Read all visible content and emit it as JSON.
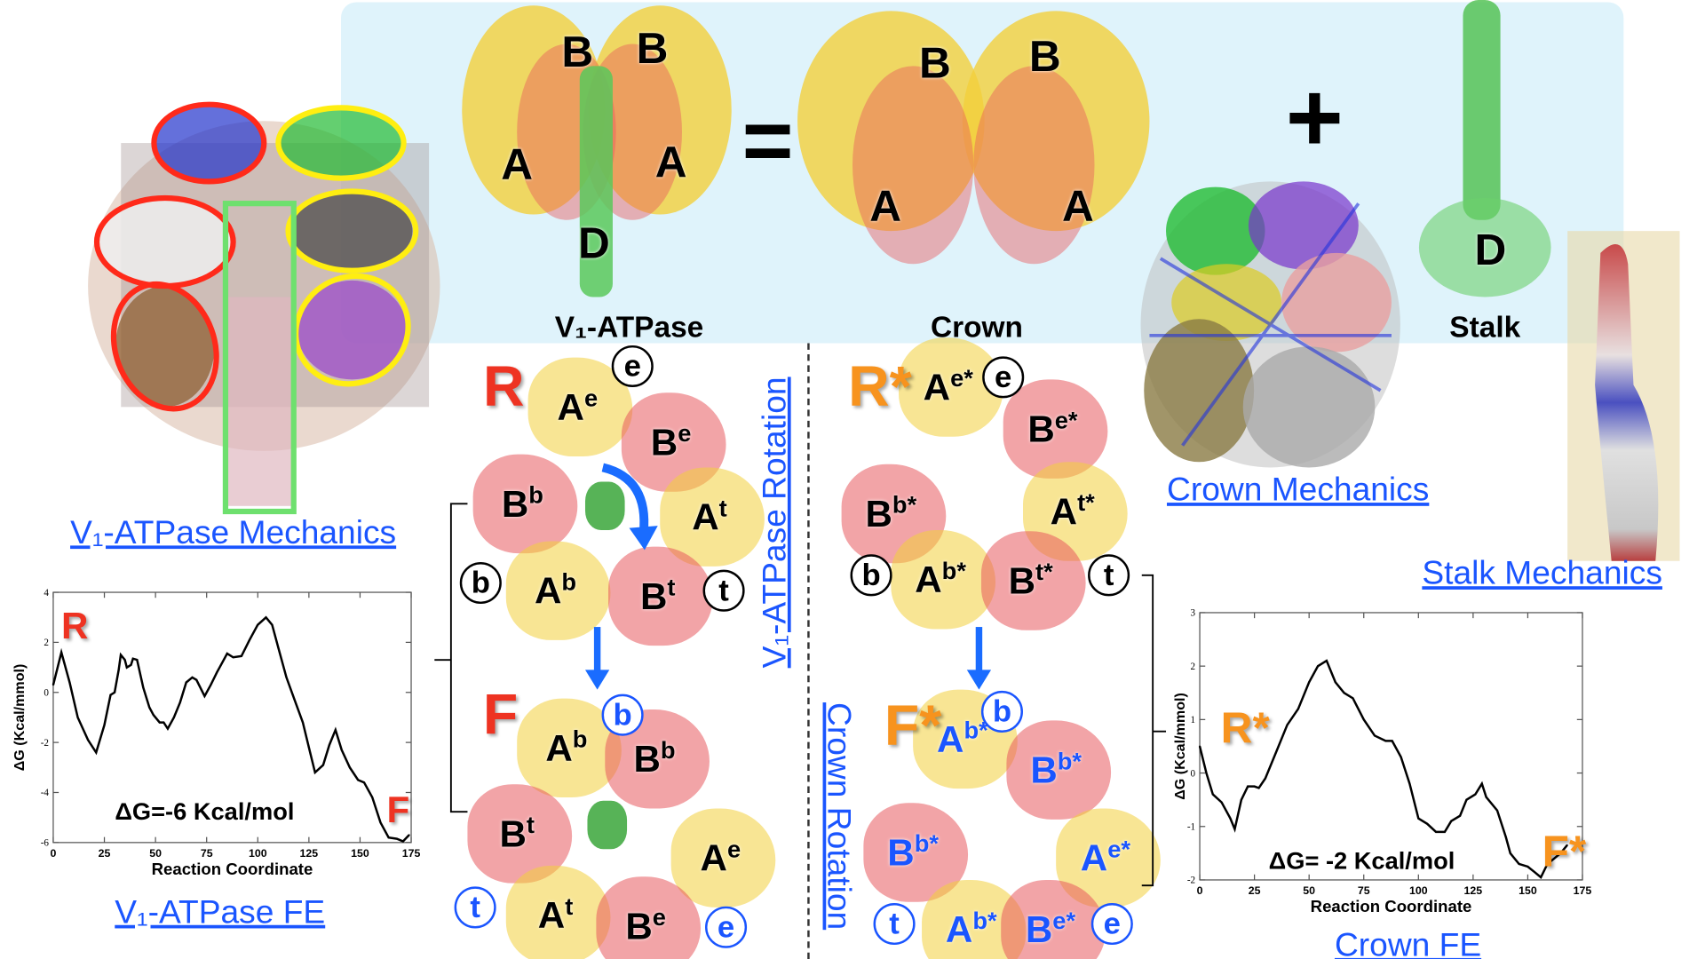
{
  "top": {
    "v1_label": "V₁-ATPase",
    "crown_label": "Crown",
    "stalk_label": "Stalk",
    "equals": "=",
    "plus": "+",
    "v1_subunits": [
      "B",
      "B",
      "A",
      "A",
      "D"
    ],
    "crown_subunits": [
      "B",
      "B",
      "A",
      "A"
    ],
    "stalk_subunit": "D"
  },
  "links": {
    "v1_mechanics": "V₁-ATPase Mechanics",
    "crown_mechanics": "Crown Mechanics",
    "stalk_mechanics": "Stalk Mechanics",
    "v1_fe": "V₁-ATPase FE",
    "crown_fe": "Crown FE",
    "v1_rotation": "V₁-ATPase Rotation",
    "crown_rotation": "Crown Rotation"
  },
  "colors": {
    "red_state": "#ee3322",
    "orange_state": "#f7931e",
    "link_blue": "#1a55ff",
    "arrow_blue": "#1a6cff",
    "panel": "#dff3fb",
    "subunit_A": "#f2cf3c",
    "subunit_B": "#e85a5e"
  },
  "v1_rotation": {
    "before": {
      "state": "R",
      "subunits": [
        {
          "b": "A",
          "s": "e"
        },
        {
          "b": "B",
          "s": "e"
        },
        {
          "b": "B",
          "s": "b"
        },
        {
          "b": "A",
          "s": "t"
        },
        {
          "b": "A",
          "s": "b"
        },
        {
          "b": "B",
          "s": "t"
        }
      ],
      "markers": [
        "e",
        "b",
        "t"
      ]
    },
    "after": {
      "state": "F",
      "subunits": [
        {
          "b": "A",
          "s": "b"
        },
        {
          "b": "B",
          "s": "b"
        },
        {
          "b": "B",
          "s": "t"
        },
        {
          "b": "A",
          "s": "e"
        },
        {
          "b": "A",
          "s": "t"
        },
        {
          "b": "B",
          "s": "e"
        }
      ],
      "markers": [
        "b",
        "t",
        "e"
      ]
    }
  },
  "crown_rotation": {
    "before": {
      "state": "R*",
      "subunits": [
        {
          "b": "A",
          "s": "e*"
        },
        {
          "b": "B",
          "s": "e*"
        },
        {
          "b": "B",
          "s": "b*"
        },
        {
          "b": "A",
          "s": "t*"
        },
        {
          "b": "A",
          "s": "b*"
        },
        {
          "b": "B",
          "s": "t*"
        }
      ],
      "markers": [
        "e",
        "b",
        "t"
      ]
    },
    "after": {
      "state": "F*",
      "subunits": [
        {
          "b": "A",
          "s": "b*"
        },
        {
          "b": "B",
          "s": "b*"
        },
        {
          "b": "B",
          "s": "b*"
        },
        {
          "b": "A",
          "s": "e*"
        },
        {
          "b": "A",
          "s": "b*"
        },
        {
          "b": "B",
          "s": "e*"
        }
      ],
      "markers": [
        "b",
        "t",
        "e"
      ]
    }
  },
  "chart_data": [
    {
      "type": "line",
      "xlabel": "Reaction Coordinate",
      "ylabel": "ΔG (Kcal/mmol)",
      "xlim": [
        0,
        175
      ],
      "ylim": [
        -6,
        4
      ],
      "xticks": [
        0,
        25,
        50,
        75,
        100,
        125,
        150,
        175
      ],
      "yticks": [
        -6,
        -4,
        -2,
        0,
        2,
        4
      ],
      "annotation": "ΔG=-6 Kcal/mol",
      "start_label": "R",
      "end_label": "F",
      "grid": false,
      "x": [
        0,
        4,
        8,
        12,
        17,
        21,
        25,
        28,
        30,
        32,
        33,
        35,
        36,
        38,
        39,
        41,
        44,
        47,
        49,
        52,
        54,
        56,
        59,
        62,
        65,
        68,
        70,
        74,
        77,
        80,
        82,
        85,
        88,
        92,
        96,
        100,
        104,
        107,
        110,
        114,
        118,
        122,
        125,
        128,
        132,
        135,
        138,
        141,
        145,
        149,
        152,
        156,
        160,
        164,
        168,
        171,
        174
      ],
      "y": [
        0.3,
        1.6,
        0.4,
        -1,
        -1.9,
        -2.4,
        -1.3,
        -0.1,
        0,
        0.9,
        1.5,
        1.3,
        1,
        1.1,
        1.35,
        1.3,
        0.2,
        -0.6,
        -0.9,
        -1.2,
        -1.2,
        -1.45,
        -1,
        -0.4,
        0.4,
        0.6,
        0.5,
        -0.15,
        0.3,
        0.8,
        1.1,
        1.55,
        1.4,
        1.45,
        2.1,
        2.7,
        3,
        2.7,
        1.8,
        0.6,
        -0.3,
        -1.2,
        -2.2,
        -3.2,
        -2.9,
        -2.1,
        -1.5,
        -2.3,
        -3,
        -3.5,
        -3.6,
        -4.2,
        -5.2,
        -5.8,
        -5.85,
        -5.95,
        -5.7
      ]
    },
    {
      "type": "line",
      "xlabel": "Reaction Coordinate",
      "ylabel": "ΔG (Kcal/mmol)",
      "xlim": [
        0,
        175
      ],
      "ylim": [
        -2,
        3
      ],
      "xticks": [
        0,
        25,
        50,
        75,
        100,
        125,
        150,
        175
      ],
      "yticks": [
        -2,
        -1,
        0,
        1,
        2,
        3
      ],
      "annotation": "ΔG= -2 Kcal/mol",
      "start_label": "R*",
      "end_label": "F*",
      "grid": false,
      "x": [
        0,
        3,
        6,
        10,
        14,
        16,
        19,
        22,
        25,
        27,
        30,
        35,
        40,
        45,
        50,
        54,
        58,
        62,
        66,
        70,
        75,
        80,
        85,
        88,
        92,
        96,
        100,
        104,
        108,
        112,
        115,
        119,
        122,
        126,
        129,
        131,
        136,
        140,
        142,
        146,
        150,
        153,
        156,
        159,
        162,
        165,
        168
      ],
      "y": [
        0.5,
        0,
        -0.4,
        -0.55,
        -0.85,
        -1.05,
        -0.5,
        -0.25,
        -0.25,
        -0.28,
        -0.1,
        0.4,
        0.9,
        1.2,
        1.7,
        2,
        2.1,
        1.7,
        1.5,
        1.4,
        1,
        0.7,
        0.6,
        0.6,
        0.3,
        -0.2,
        -0.85,
        -0.95,
        -1.1,
        -1.1,
        -0.9,
        -0.8,
        -0.5,
        -0.4,
        -0.2,
        -0.45,
        -0.7,
        -1.2,
        -1.5,
        -1.7,
        -1.75,
        -1.85,
        -1.95,
        -1.7,
        -1.6,
        -1.5,
        -1.35
      ]
    }
  ]
}
